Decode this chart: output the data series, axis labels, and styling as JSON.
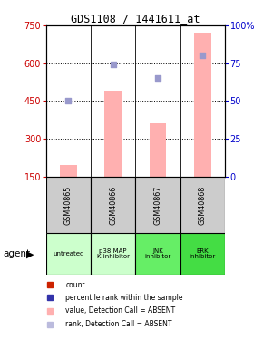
{
  "title": "GDS1108 / 1441611_at",
  "samples": [
    "GSM40865",
    "GSM40866",
    "GSM40867",
    "GSM40868"
  ],
  "agents": [
    "untreated",
    "p38 MAP\nK inhibitor",
    "JNK\ninhibitor",
    "ERK\ninhibitor"
  ],
  "agent_colors": [
    "#ccffcc",
    "#ccffcc",
    "#66ee66",
    "#44dd44"
  ],
  "bar_values": [
    195,
    490,
    360,
    720
  ],
  "bar_color": "#ffb0b0",
  "dot_values": [
    50,
    74,
    65,
    80
  ],
  "dot_color": "#9999cc",
  "left_yticks": [
    150,
    300,
    450,
    600,
    750
  ],
  "right_yticks": [
    0,
    25,
    50,
    75,
    100
  ],
  "ylim_left": [
    150,
    750
  ],
  "ylim_right": [
    0,
    100
  ],
  "left_tick_color": "#cc0000",
  "right_tick_color": "#0000cc",
  "legend_items": [
    {
      "color": "#cc2200",
      "label": "count"
    },
    {
      "color": "#3333aa",
      "label": "percentile rank within the sample"
    },
    {
      "color": "#ffb0b0",
      "label": "value, Detection Call = ABSENT"
    },
    {
      "color": "#bbbbdd",
      "label": "rank, Detection Call = ABSENT"
    }
  ],
  "agent_label": "agent",
  "bg_color": "#ffffff",
  "sample_cell_color": "#cccccc"
}
